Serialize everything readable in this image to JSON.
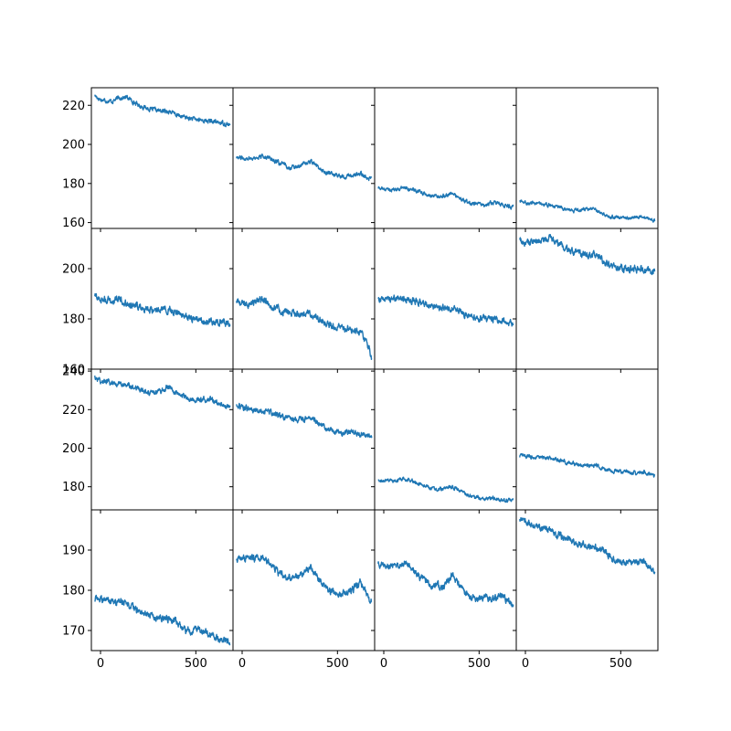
{
  "chart_data": {
    "type": "line",
    "layout": "4x4 grid of small-multiple line plots",
    "line_color": "#1f77b4",
    "x_ticks": [
      0,
      500
    ],
    "shared_x_axis": true,
    "rows": [
      {
        "yticks": [
          160,
          180,
          200,
          220
        ],
        "ylim": [
          157,
          229
        ]
      },
      {
        "yticks": [
          160,
          180,
          200
        ],
        "ylim": [
          160,
          216
        ]
      },
      {
        "yticks": [
          180,
          200,
          220,
          240
        ],
        "ylim": [
          168,
          241
        ]
      },
      {
        "yticks": [
          170,
          180,
          190
        ],
        "ylim": [
          165,
          200
        ]
      }
    ],
    "panels": [
      {
        "row": 0,
        "col": 0,
        "noise": 0.8,
        "x": [
          -30,
          0,
          60,
          100,
          140,
          200,
          260,
          320,
          360,
          400,
          480,
          560,
          640,
          680
        ],
        "y": [
          225,
          223,
          222,
          224,
          224,
          220,
          218,
          217,
          217,
          215,
          213,
          212,
          211,
          210
        ]
      },
      {
        "row": 0,
        "col": 1,
        "noise": 0.8,
        "x": [
          -30,
          0,
          60,
          130,
          200,
          260,
          320,
          360,
          400,
          450,
          520,
          580,
          620,
          680
        ],
        "y": [
          194,
          193,
          193,
          194,
          190,
          188,
          190,
          191,
          188,
          185,
          184,
          184,
          185,
          182
        ]
      },
      {
        "row": 0,
        "col": 2,
        "noise": 0.7,
        "x": [
          -30,
          0,
          60,
          120,
          200,
          260,
          320,
          360,
          400,
          450,
          520,
          580,
          620,
          680
        ],
        "y": [
          178,
          177,
          177,
          178,
          175,
          173,
          174,
          175,
          172,
          170,
          169,
          170,
          169,
          168
        ]
      },
      {
        "row": 0,
        "col": 3,
        "noise": 0.6,
        "x": [
          -30,
          0,
          60,
          120,
          200,
          260,
          320,
          360,
          400,
          450,
          520,
          580,
          620,
          680
        ],
        "y": [
          171,
          170,
          170,
          169,
          167,
          166,
          167,
          167,
          165,
          163,
          162,
          163,
          163,
          161
        ]
      },
      {
        "row": 1,
        "col": 0,
        "noise": 1.0,
        "x": [
          -30,
          0,
          60,
          100,
          140,
          200,
          260,
          340,
          380,
          440,
          500,
          560,
          620,
          680
        ],
        "y": [
          189,
          188,
          187,
          188,
          186,
          185,
          184,
          184,
          183,
          181,
          180,
          179,
          179,
          178
        ]
      },
      {
        "row": 1,
        "col": 1,
        "noise": 1.0,
        "x": [
          -30,
          0,
          60,
          110,
          140,
          200,
          260,
          320,
          360,
          420,
          480,
          560,
          620,
          650,
          670,
          680
        ],
        "y": [
          187,
          186,
          186,
          188,
          186,
          183,
          182,
          182,
          182,
          179,
          177,
          176,
          175,
          172,
          167,
          163
        ]
      },
      {
        "row": 1,
        "col": 2,
        "noise": 0.9,
        "x": [
          -30,
          0,
          60,
          120,
          200,
          260,
          320,
          360,
          400,
          450,
          520,
          580,
          620,
          680
        ],
        "y": [
          188,
          188,
          188,
          188,
          186,
          185,
          184,
          184,
          183,
          181,
          180,
          180,
          179,
          178
        ]
      },
      {
        "row": 1,
        "col": 3,
        "noise": 1.0,
        "x": [
          -30,
          0,
          60,
          130,
          200,
          260,
          320,
          360,
          400,
          450,
          520,
          580,
          620,
          680
        ],
        "y": [
          211,
          210,
          211,
          212,
          208,
          206,
          206,
          206,
          204,
          201,
          200,
          200,
          200,
          198
        ]
      },
      {
        "row": 2,
        "col": 0,
        "noise": 1.0,
        "x": [
          -30,
          0,
          60,
          120,
          200,
          260,
          320,
          360,
          400,
          450,
          520,
          580,
          620,
          680
        ],
        "y": [
          237,
          235,
          234,
          233,
          231,
          229,
          230,
          232,
          228,
          226,
          225,
          225,
          223,
          221
        ]
      },
      {
        "row": 2,
        "col": 1,
        "noise": 1.0,
        "x": [
          -30,
          0,
          60,
          120,
          200,
          260,
          320,
          360,
          400,
          450,
          520,
          580,
          620,
          680
        ],
        "y": [
          222,
          221,
          220,
          219,
          217,
          215,
          215,
          216,
          213,
          210,
          208,
          209,
          207,
          205
        ]
      },
      {
        "row": 2,
        "col": 2,
        "noise": 0.7,
        "x": [
          -30,
          0,
          60,
          120,
          200,
          260,
          320,
          360,
          400,
          450,
          520,
          580,
          620,
          680
        ],
        "y": [
          183,
          183,
          183,
          184,
          181,
          179,
          179,
          180,
          178,
          175,
          174,
          174,
          173,
          173
        ]
      },
      {
        "row": 2,
        "col": 3,
        "noise": 0.7,
        "x": [
          -30,
          0,
          60,
          120,
          200,
          260,
          320,
          360,
          400,
          450,
          520,
          580,
          620,
          680
        ],
        "y": [
          196,
          196,
          195,
          195,
          193,
          192,
          191,
          191,
          190,
          188,
          188,
          187,
          188,
          185
        ]
      },
      {
        "row": 3,
        "col": 0,
        "noise": 0.6,
        "x": [
          -30,
          0,
          60,
          120,
          200,
          260,
          320,
          360,
          400,
          450,
          520,
          580,
          620,
          680
        ],
        "y": [
          178,
          178,
          177,
          177,
          175,
          174,
          173,
          173,
          172,
          170,
          170,
          169,
          168,
          167
        ]
      },
      {
        "row": 3,
        "col": 1,
        "noise": 0.6,
        "x": [
          -30,
          0,
          60,
          120,
          200,
          260,
          320,
          360,
          400,
          450,
          520,
          580,
          620,
          680
        ],
        "y": [
          188,
          188,
          188,
          188,
          184,
          183,
          184,
          186,
          183,
          180,
          179,
          180,
          182,
          177
        ]
      },
      {
        "row": 3,
        "col": 2,
        "noise": 0.6,
        "x": [
          -30,
          0,
          60,
          120,
          200,
          260,
          320,
          360,
          400,
          450,
          520,
          580,
          620,
          680
        ],
        "y": [
          187,
          186,
          186,
          187,
          183,
          181,
          181,
          184,
          181,
          178,
          178,
          178,
          179,
          176
        ]
      },
      {
        "row": 3,
        "col": 3,
        "noise": 0.6,
        "x": [
          -30,
          0,
          60,
          120,
          200,
          260,
          320,
          360,
          400,
          450,
          520,
          580,
          620,
          680
        ],
        "y": [
          198,
          197,
          196,
          195,
          193,
          192,
          191,
          191,
          190,
          188,
          187,
          187,
          187,
          185
        ]
      }
    ]
  }
}
